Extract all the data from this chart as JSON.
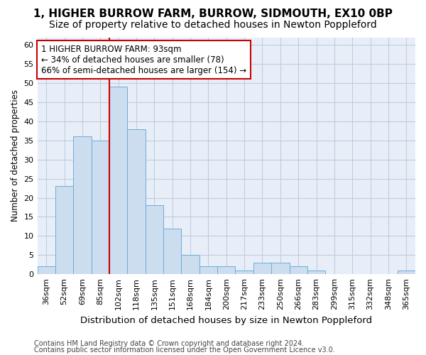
{
  "title": "1, HIGHER BURROW FARM, BURROW, SIDMOUTH, EX10 0BP",
  "subtitle": "Size of property relative to detached houses in Newton Poppleford",
  "xlabel": "Distribution of detached houses by size in Newton Poppleford",
  "ylabel": "Number of detached properties",
  "categories": [
    "36sqm",
    "52sqm",
    "69sqm",
    "85sqm",
    "102sqm",
    "118sqm",
    "135sqm",
    "151sqm",
    "168sqm",
    "184sqm",
    "200sqm",
    "217sqm",
    "233sqm",
    "250sqm",
    "266sqm",
    "283sqm",
    "299sqm",
    "315sqm",
    "332sqm",
    "348sqm",
    "365sqm"
  ],
  "values": [
    2,
    23,
    36,
    35,
    49,
    38,
    18,
    12,
    5,
    2,
    2,
    1,
    3,
    3,
    2,
    1,
    0,
    0,
    0,
    0,
    1
  ],
  "bar_color": "#ccddf0",
  "bar_edge_color": "#6baed6",
  "vline_color": "#cc0000",
  "vline_x": 3.5,
  "annotation_line1": "1 HIGHER BURROW FARM: 93sqm",
  "annotation_line2": "← 34% of detached houses are smaller (78)",
  "annotation_line3": "66% of semi-detached houses are larger (154) →",
  "annotation_box_color": "white",
  "annotation_box_edge": "#cc0000",
  "ylim": [
    0,
    62
  ],
  "yticks": [
    0,
    5,
    10,
    15,
    20,
    25,
    30,
    35,
    40,
    45,
    50,
    55,
    60
  ],
  "footer1": "Contains HM Land Registry data © Crown copyright and database right 2024.",
  "footer2": "Contains public sector information licensed under the Open Government Licence v3.0.",
  "bg_color": "#ffffff",
  "plot_bg_color": "#e8eef8",
  "grid_color": "#c0cce0",
  "title_fontsize": 11,
  "subtitle_fontsize": 10,
  "xlabel_fontsize": 9.5,
  "ylabel_fontsize": 8.5,
  "tick_fontsize": 8,
  "annotation_fontsize": 8.5,
  "footer_fontsize": 7
}
